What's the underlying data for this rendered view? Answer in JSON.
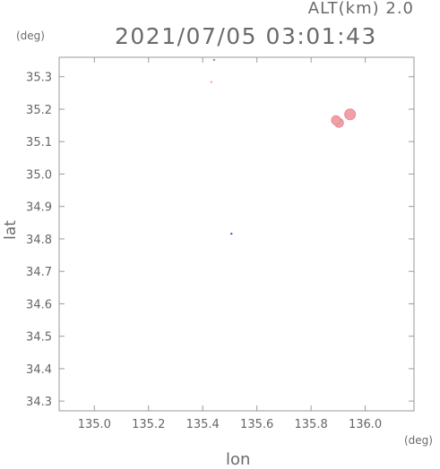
{
  "header": {
    "alt_label": "ALT(km) 2.0",
    "timestamp": "2021/07/05 03:01:43"
  },
  "axes": {
    "y_unit": "(deg)",
    "x_unit": "(deg)",
    "y_label": "lat",
    "x_label": "lon"
  },
  "chart_data": {
    "type": "scatter",
    "title": "2021/07/05 03:01:43",
    "subtitle": "ALT(km) 2.0",
    "xlabel": "lon",
    "ylabel": "lat",
    "xlim": [
      134.87,
      136.18
    ],
    "ylim": [
      34.27,
      35.36
    ],
    "x_ticks": [
      135.0,
      135.2,
      135.4,
      135.6,
      135.8,
      136.0
    ],
    "x_tick_labels": [
      "135.0",
      "135.2",
      "135.4",
      "135.6",
      "135.8",
      "136.0"
    ],
    "y_ticks": [
      34.3,
      34.4,
      34.5,
      34.6,
      34.7,
      34.8,
      34.9,
      35.0,
      35.1,
      35.2,
      35.3
    ],
    "y_tick_labels": [
      "34.3",
      "34.4",
      "34.5",
      "34.6",
      "34.7",
      "34.8",
      "34.9",
      "35.0",
      "35.1",
      "35.2",
      "35.3"
    ],
    "grid": false,
    "points": [
      {
        "x": 135.944,
        "y": 35.184,
        "size": "large",
        "color": "#f2a0a8"
      },
      {
        "x": 135.903,
        "y": 35.158,
        "size": "medium",
        "color": "#f2a0a8"
      },
      {
        "x": 135.892,
        "y": 35.166,
        "size": "medium",
        "color": "#f2a0a8"
      },
      {
        "x": 135.432,
        "y": 35.284,
        "size": "tiny",
        "color": "#f2a0a8"
      },
      {
        "x": 135.442,
        "y": 35.352,
        "size": "tiny",
        "color": "#8a8aa8"
      },
      {
        "x": 135.506,
        "y": 34.816,
        "size": "tiny",
        "color": "#4a4ae0"
      }
    ]
  }
}
